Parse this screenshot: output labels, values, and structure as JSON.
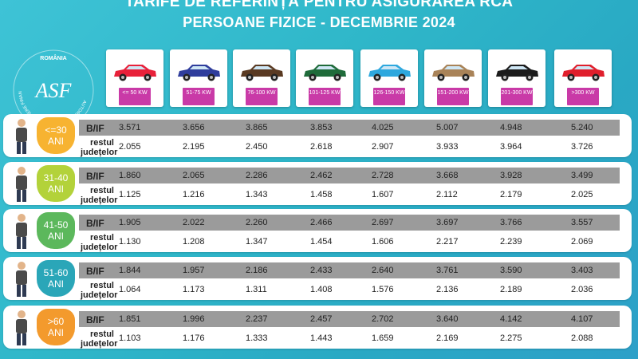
{
  "header": {
    "title_line1": "TARIFE DE REFERINȚĂ PENTRU ASIGURAREA RCA",
    "title_line2": "PERSOANE FIZICE - DECEMBRIE 2024"
  },
  "logo": {
    "country": "ROMÂNIA",
    "monogram": "ASF",
    "ring_text": "AUTORITATEA DE SUPRAVEGHERE FINANCIARĂ"
  },
  "cars": [
    {
      "kw": "<= 50 KW",
      "color": "#e8213a",
      "icon": "small-hatchback-icon"
    },
    {
      "kw": "51-75 KW",
      "color": "#2f3d9c",
      "icon": "hatchback-icon"
    },
    {
      "kw": "76-100 KW",
      "color": "#5a3a22",
      "icon": "sedan-icon"
    },
    {
      "kw": "101-125 KW",
      "color": "#1f6b3a",
      "icon": "minivan-icon"
    },
    {
      "kw": "126-150 KW",
      "color": "#2ea8de",
      "icon": "sedan-icon"
    },
    {
      "kw": "151-200 KW",
      "color": "#a98358",
      "icon": "suv-icon"
    },
    {
      "kw": "201-300 KW",
      "color": "#1c1c1c",
      "icon": "convertible-icon"
    },
    {
      "kw": ">300 KW",
      "color": "#e01f2c",
      "icon": "sports-car-icon"
    }
  ],
  "labels": {
    "bif": "B/IF",
    "rest_line1": "restul",
    "rest_line2": "județelor"
  },
  "rows": [
    {
      "age_line1": "<=30",
      "age_line2": "ANI",
      "badge_color": "#f7b331",
      "bif": [
        "3.571",
        "3.656",
        "3.865",
        "3.853",
        "4.025",
        "5.007",
        "4.948",
        "5.240"
      ],
      "rest": [
        "2.055",
        "2.195",
        "2.450",
        "2.618",
        "2.907",
        "3.933",
        "3.964",
        "3.726"
      ]
    },
    {
      "age_line1": "31-40",
      "age_line2": "ANI",
      "badge_color": "#b3d23a",
      "bif": [
        "1.860",
        "2.065",
        "2.286",
        "2.462",
        "2.728",
        "3.668",
        "3.928",
        "3.499"
      ],
      "rest": [
        "1.125",
        "1.216",
        "1.343",
        "1.458",
        "1.607",
        "2.112",
        "2.179",
        "2.025"
      ]
    },
    {
      "age_line1": "41-50",
      "age_line2": "ANI",
      "badge_color": "#5cb85c",
      "bif": [
        "1.905",
        "2.022",
        "2.260",
        "2.466",
        "2.697",
        "3.697",
        "3.766",
        "3.557"
      ],
      "rest": [
        "1.130",
        "1.208",
        "1.347",
        "1.454",
        "1.606",
        "2.217",
        "2.239",
        "2.069"
      ]
    },
    {
      "age_line1": "51-60",
      "age_line2": "ANI",
      "badge_color": "#2aa6b8",
      "bif": [
        "1.844",
        "1.957",
        "2.186",
        "2.433",
        "2.640",
        "3.761",
        "3.590",
        "3.403"
      ],
      "rest": [
        "1.064",
        "1.173",
        "1.311",
        "1.408",
        "1.576",
        "2.136",
        "2.189",
        "2.036"
      ]
    },
    {
      "age_line1": ">60",
      "age_line2": "ANI",
      "badge_color": "#f39a2d",
      "bif": [
        "1.851",
        "1.996",
        "2.237",
        "2.457",
        "2.702",
        "3.640",
        "4.142",
        "4.107"
      ],
      "rest": [
        "1.103",
        "1.176",
        "1.333",
        "1.443",
        "1.659",
        "2.169",
        "2.275",
        "2.088"
      ]
    }
  ]
}
